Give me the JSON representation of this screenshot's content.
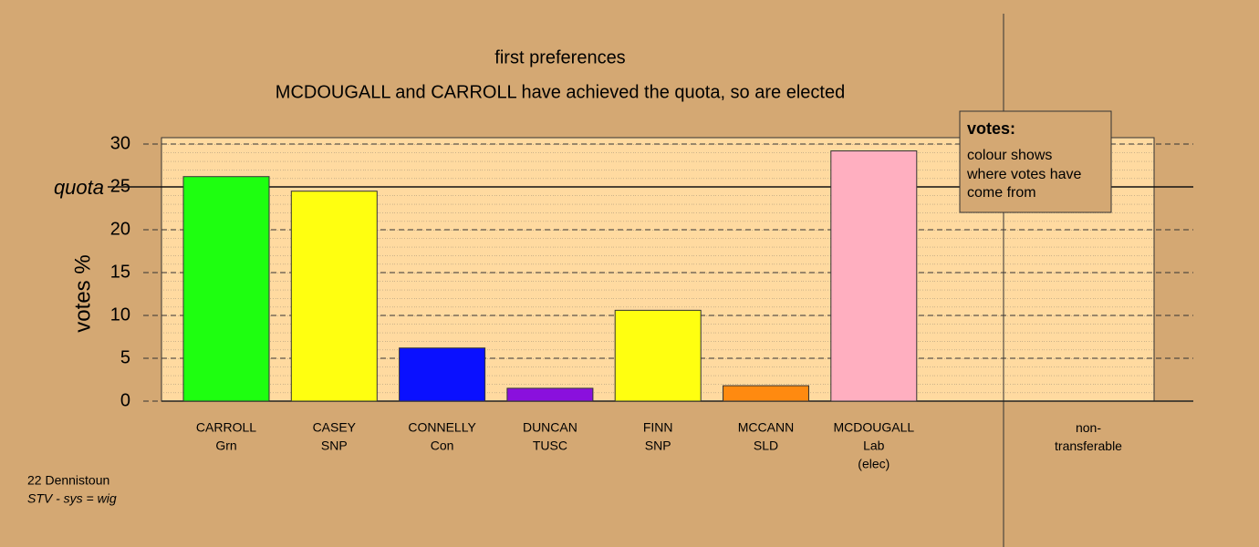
{
  "chart_data": {
    "type": "bar",
    "title": "first preferences",
    "subtitle": "MCDOUGALL and CARROLL have achieved the quota, so are elected",
    "y_label": "votes %",
    "categories": [
      "CARROLL",
      "CASEY",
      "CONNELLY",
      "DUNCAN",
      "FINN",
      "MCCANN",
      "MCDOUGALL",
      "non-transferable"
    ],
    "parties": [
      "Grn",
      "SNP",
      "Con",
      "TUSC",
      "SNP",
      "SLD",
      "Lab",
      null
    ],
    "status": [
      null,
      null,
      null,
      null,
      null,
      null,
      "(elec)",
      null
    ],
    "values": [
      26.2,
      24.5,
      6.2,
      1.5,
      10.6,
      1.8,
      29.2,
      0
    ],
    "colors": [
      "#1eff10",
      "#ffff10",
      "#0a10ff",
      "#8a10dd",
      "#ffff10",
      "#ff8a10",
      "#ffafc0",
      "#ffffff"
    ],
    "ylim": [
      0,
      30
    ],
    "yticks": [
      0,
      5,
      10,
      15,
      20,
      25,
      30
    ],
    "quota": {
      "value": 25,
      "label": "quota"
    },
    "legend": {
      "title": "votes:",
      "text": "colour shows where votes have come from"
    },
    "footnote": [
      "22 Dennistoun",
      "STV - sys = wig"
    ],
    "grid": true
  }
}
